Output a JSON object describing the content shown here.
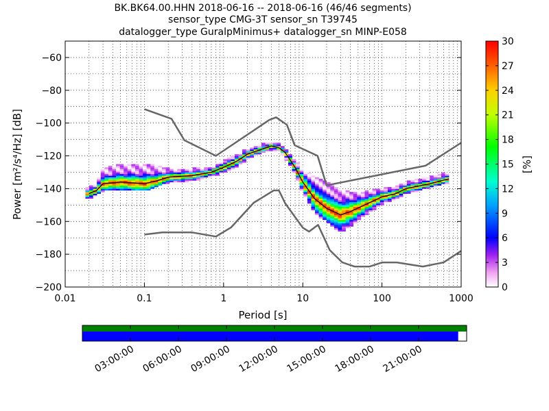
{
  "chart_data": {
    "type": "heatmap",
    "title_lines": [
      "BK.BK64.00.HHN   2018-06-16 -- 2018-06-16  (46/46 segments)",
      "sensor_type CMG-3T sensor_sn T39745",
      "datalogger_type GuralpMinimus+ datalogger_sn MINP-E058"
    ],
    "xlabel": "Period [s]",
    "ylabel": "Power [m²/s⁴/Hz] [dB]",
    "x_scale": "log",
    "xlim": [
      0.01,
      1000
    ],
    "ylim": [
      -200,
      -50
    ],
    "x_ticks": [
      "0.01",
      "0.1",
      "1",
      "10",
      "100",
      "1000"
    ],
    "y_ticks": [
      "−200",
      "−180",
      "−160",
      "−140",
      "−120",
      "−100",
      "−80",
      "−60"
    ],
    "grid": true,
    "colorbar": {
      "label": "[%]",
      "range": [
        0,
        30
      ],
      "ticks": [
        "0",
        "3",
        "6",
        "9",
        "12",
        "15",
        "18",
        "21",
        "24",
        "27",
        "30"
      ]
    },
    "noise_model_high": {
      "x": [
        0.1,
        0.22,
        0.32,
        0.8,
        3.8,
        4.6,
        6.3,
        7.9,
        15.4,
        20,
        354,
        1000
      ],
      "y": [
        -91.5,
        -97.4,
        -110.5,
        -120,
        -98,
        -96.5,
        -101,
        -113.5,
        -120,
        -138,
        -126,
        -112
      ]
    },
    "noise_model_low": {
      "x": [
        0.1,
        0.17,
        0.4,
        0.8,
        1.24,
        2.4,
        4.3,
        5,
        6,
        10,
        12,
        15.6,
        21.9,
        31.6,
        45,
        70,
        101,
        154,
        328,
        600,
        1000
      ],
      "y": [
        -168,
        -166.7,
        -166.7,
        -169.2,
        -163.7,
        -148.6,
        -141.1,
        -141.1,
        -149,
        -163.8,
        -166.2,
        -162.1,
        -177.5,
        -185,
        -187.5,
        -187.5,
        -185,
        -185,
        -187.5,
        -185,
        -178
      ]
    },
    "mode_curve": {
      "x": [
        0.02,
        0.025,
        0.03,
        0.05,
        0.1,
        0.15,
        0.2,
        0.4,
        0.7,
        1,
        1.5,
        2,
        3,
        4,
        5,
        6,
        8,
        10,
        14,
        20,
        30,
        40,
        60,
        100,
        150,
        200,
        400,
        700
      ],
      "y": [
        -143,
        -141,
        -137,
        -136,
        -137,
        -135,
        -133,
        -132,
        -130,
        -127,
        -123,
        -119,
        -116,
        -114,
        -115,
        -118,
        -127,
        -136,
        -146,
        -152,
        -156,
        -154,
        -150,
        -145,
        -143,
        -140,
        -137,
        -134
      ]
    },
    "psd_bands": {
      "x": [
        0.02,
        0.025,
        0.03,
        0.05,
        0.1,
        0.15,
        0.2,
        0.4,
        0.7,
        1,
        1.5,
        2,
        3,
        4,
        5,
        6,
        8,
        10,
        14,
        20,
        30,
        40,
        60,
        100,
        150,
        200,
        400,
        700
      ],
      "low": [
        -146,
        -144,
        -141,
        -140,
        -141,
        -138,
        -136,
        -135,
        -132,
        -130,
        -126,
        -122,
        -118,
        -116,
        -117,
        -121,
        -131,
        -142,
        -154,
        -160,
        -166,
        -163,
        -156,
        -149,
        -146,
        -143,
        -139,
        -136
      ],
      "high": [
        -139,
        -137,
        -128,
        -125,
        -125,
        -126,
        -128,
        -128,
        -127,
        -123,
        -119,
        -116,
        -113,
        -112,
        -113,
        -116,
        -123,
        -128,
        -133,
        -136,
        -141,
        -142,
        -142,
        -140,
        -139,
        -136,
        -133,
        -130
      ]
    },
    "time_axis": {
      "ticks": [
        "03:00:00",
        "06:00:00",
        "09:00:00",
        "12:00:00",
        "15:00:00",
        "18:00:00",
        "21:00:00"
      ],
      "data_coverage_fraction": 1.0,
      "segment_coverage_fraction": 0.978
    }
  },
  "colors": {
    "noise_model": "#666666",
    "mode": "#000000",
    "coverage_top": "#008000",
    "coverage_bottom": "#0000ff"
  }
}
